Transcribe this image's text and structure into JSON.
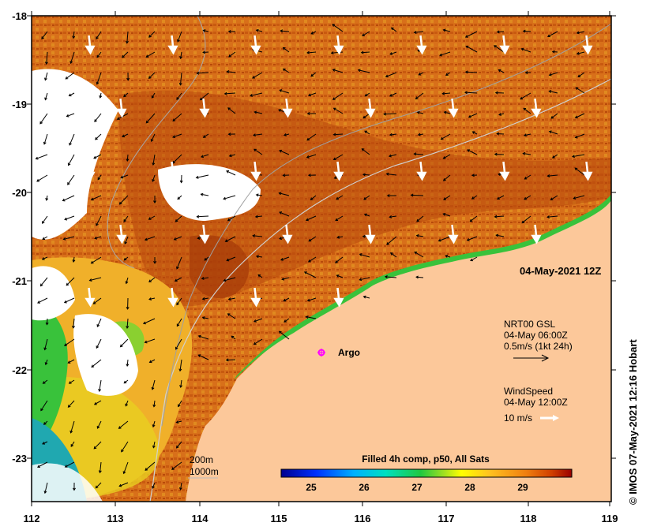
{
  "map": {
    "lon_ticks": [
      "112",
      "113",
      "114",
      "115",
      "116",
      "117",
      "118",
      "119"
    ],
    "lat_ticks": [
      "-18",
      "-19",
      "-20",
      "-21",
      "-22",
      "-23"
    ],
    "date_label": "04-May-2021 12Z",
    "buoy": {
      "name": "Argo"
    },
    "current_legend": {
      "line1": "NRT00 GSL",
      "line2": "04-May 06:00Z",
      "line3": "0.5m/s (1kt 24h)"
    },
    "wind_legend": {
      "line1": "WindSpeed",
      "line2": "04-May 12:00Z",
      "line3": "10 m/s"
    },
    "isobath_labels": {
      "a": "200m",
      "b": "1000m"
    },
    "colorbar": {
      "title": "Filled 4h comp, p50, All Sats",
      "ticks": [
        "25",
        "26",
        "27",
        "28",
        "29"
      ]
    },
    "credit": "© IMOS 07-May-2021 12:16 Hobart",
    "colors": {
      "land": "#fcc89a",
      "warm": "#d86a10",
      "mid": "#e89a1e",
      "cool": "#39c23b",
      "cloud": "#ffffff",
      "buoy": "#ff00ff"
    }
  }
}
